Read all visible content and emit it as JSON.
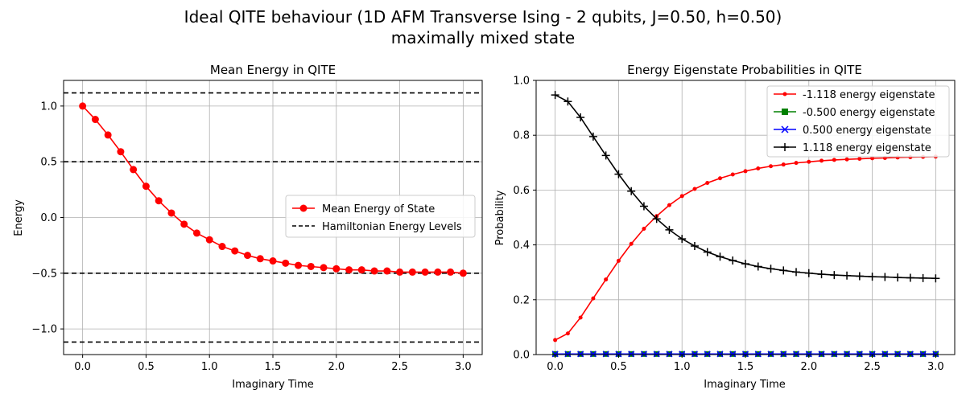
{
  "figure": {
    "title_line1": "Ideal QITE behaviour (1D AFM Transverse Ising - 2 qubits,  J=0.50, h=0.50)",
    "title_line2": "maximally mixed state"
  },
  "chart_data": [
    {
      "type": "line",
      "title": "Mean Energy in QITE",
      "xlabel": "Imaginary Time",
      "ylabel": "Energy",
      "xlim": [
        -0.15,
        3.15
      ],
      "ylim": [
        -1.23,
        1.23
      ],
      "xticks": [
        0.0,
        0.5,
        1.0,
        1.5,
        2.0,
        2.5,
        3.0
      ],
      "xtick_labels": [
        "0.0",
        "0.5",
        "1.0",
        "1.5",
        "2.0",
        "2.5",
        "3.0"
      ],
      "yticks": [
        1.0,
        0.5,
        0.0,
        -0.5,
        -1.0
      ],
      "ytick_labels": [
        "1.0",
        "0.5",
        "0.0",
        "−0.5",
        "−1.0"
      ],
      "grid": true,
      "legend_position": "center-right",
      "x": [
        0.0,
        0.1,
        0.2,
        0.3,
        0.4,
        0.5,
        0.6,
        0.7,
        0.8,
        0.9,
        1.0,
        1.1,
        1.2,
        1.3,
        1.4,
        1.5,
        1.6,
        1.7,
        1.8,
        1.9,
        2.0,
        2.1,
        2.2,
        2.3,
        2.4,
        2.5,
        2.6,
        2.7,
        2.8,
        2.9,
        3.0
      ],
      "series": [
        {
          "name": "Mean Energy of State",
          "color": "#ff0000",
          "marker": "circle",
          "values": [
            1.0,
            0.88,
            0.74,
            0.59,
            0.43,
            0.28,
            0.15,
            0.04,
            -0.06,
            -0.14,
            -0.2,
            -0.26,
            -0.3,
            -0.34,
            -0.37,
            -0.39,
            -0.41,
            -0.43,
            -0.44,
            -0.45,
            -0.46,
            -0.47,
            -0.47,
            -0.48,
            -0.48,
            -0.49,
            -0.49,
            -0.49,
            -0.49,
            -0.49,
            -0.5
          ]
        }
      ],
      "hlines": {
        "name": "Hamiltonian Energy Levels",
        "color": "#000000",
        "style": "dashed",
        "values": [
          1.118,
          0.5,
          -0.5,
          -1.118
        ]
      }
    },
    {
      "type": "line",
      "title": "Energy Eigenstate Probabilities in QITE",
      "xlabel": "Imaginary Time",
      "ylabel": "Probability",
      "xlim": [
        -0.15,
        3.15
      ],
      "ylim": [
        0.0,
        1.0
      ],
      "xticks": [
        0.0,
        0.5,
        1.0,
        1.5,
        2.0,
        2.5,
        3.0
      ],
      "xtick_labels": [
        "0.0",
        "0.5",
        "1.0",
        "1.5",
        "2.0",
        "2.5",
        "3.0"
      ],
      "yticks": [
        0.0,
        0.2,
        0.4,
        0.6,
        0.8,
        1.0
      ],
      "ytick_labels": [
        "0.0",
        "0.2",
        "0.4",
        "0.6",
        "0.8",
        "1.0"
      ],
      "grid": true,
      "legend_position": "top-right",
      "x": [
        0.0,
        0.1,
        0.2,
        0.3,
        0.4,
        0.5,
        0.6,
        0.7,
        0.8,
        0.9,
        1.0,
        1.1,
        1.2,
        1.3,
        1.4,
        1.5,
        1.6,
        1.7,
        1.8,
        1.9,
        2.0,
        2.1,
        2.2,
        2.3,
        2.4,
        2.5,
        2.6,
        2.7,
        2.8,
        2.9,
        3.0
      ],
      "series": [
        {
          "name": "-1.118 energy eigenstate",
          "color": "#ff0000",
          "marker": "dot",
          "values": [
            0.053,
            0.077,
            0.135,
            0.205,
            0.274,
            0.342,
            0.404,
            0.459,
            0.505,
            0.545,
            0.578,
            0.604,
            0.626,
            0.643,
            0.657,
            0.669,
            0.679,
            0.687,
            0.693,
            0.699,
            0.703,
            0.707,
            0.71,
            0.712,
            0.714,
            0.716,
            0.717,
            0.719,
            0.72,
            0.721,
            0.722
          ]
        },
        {
          "name": "-0.500 energy eigenstate",
          "color": "#008000",
          "marker": "square",
          "values": [
            0.002,
            0.002,
            0.002,
            0.002,
            0.002,
            0.002,
            0.002,
            0.002,
            0.002,
            0.002,
            0.002,
            0.002,
            0.002,
            0.002,
            0.002,
            0.002,
            0.002,
            0.002,
            0.002,
            0.002,
            0.002,
            0.002,
            0.002,
            0.002,
            0.002,
            0.002,
            0.002,
            0.002,
            0.002,
            0.002,
            0.002
          ]
        },
        {
          "name": "0.500 energy eigenstate",
          "color": "#0000ff",
          "marker": "x",
          "values": [
            0.002,
            0.002,
            0.002,
            0.002,
            0.002,
            0.002,
            0.002,
            0.002,
            0.002,
            0.002,
            0.002,
            0.002,
            0.002,
            0.002,
            0.002,
            0.002,
            0.002,
            0.002,
            0.002,
            0.002,
            0.002,
            0.002,
            0.002,
            0.002,
            0.002,
            0.002,
            0.002,
            0.002,
            0.002,
            0.002,
            0.002
          ]
        },
        {
          "name": "1.118 energy eigenstate",
          "color": "#000000",
          "marker": "plus",
          "values": [
            0.947,
            0.923,
            0.865,
            0.795,
            0.726,
            0.658,
            0.596,
            0.541,
            0.495,
            0.455,
            0.422,
            0.396,
            0.374,
            0.357,
            0.343,
            0.331,
            0.321,
            0.313,
            0.307,
            0.301,
            0.297,
            0.293,
            0.29,
            0.288,
            0.286,
            0.284,
            0.283,
            0.281,
            0.28,
            0.279,
            0.278
          ]
        }
      ]
    }
  ]
}
